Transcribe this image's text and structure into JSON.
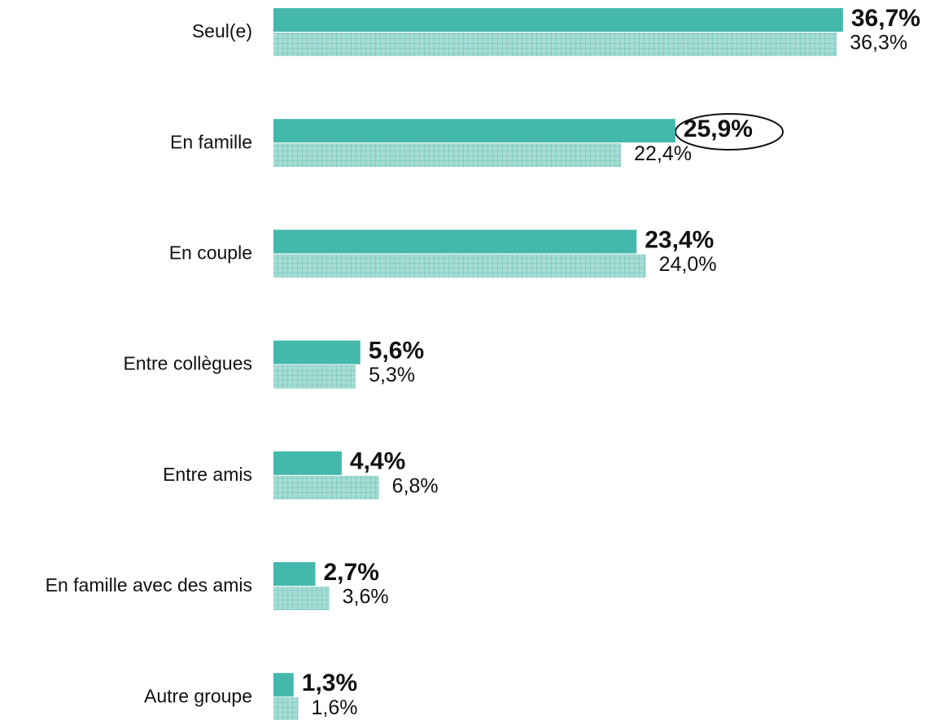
{
  "chart_data": {
    "type": "bar",
    "categories": [
      "Seul(e)",
      "En famille",
      "En couple",
      "Entre collègues",
      "Entre amis",
      "En famille avec des amis",
      "Autre groupe"
    ],
    "series": [
      {
        "color": "#45b8ac",
        "values": [
          36.7,
          25.9,
          23.4,
          5.6,
          4.4,
          2.7,
          1.3
        ],
        "value_labels": [
          "36,7%",
          "25,9%",
          "23,4%",
          "5,6%",
          "4,4%",
          "2,7%",
          "1,3%"
        ]
      },
      {
        "color": "#a6dcd5",
        "values": [
          36.3,
          22.4,
          24.0,
          5.3,
          6.8,
          3.6,
          1.6
        ],
        "value_labels": [
          "36,3%",
          "22,4%",
          "24,0%",
          "5,3%",
          "6,8%",
          "3,6%",
          "1,6%"
        ]
      }
    ]
  }
}
